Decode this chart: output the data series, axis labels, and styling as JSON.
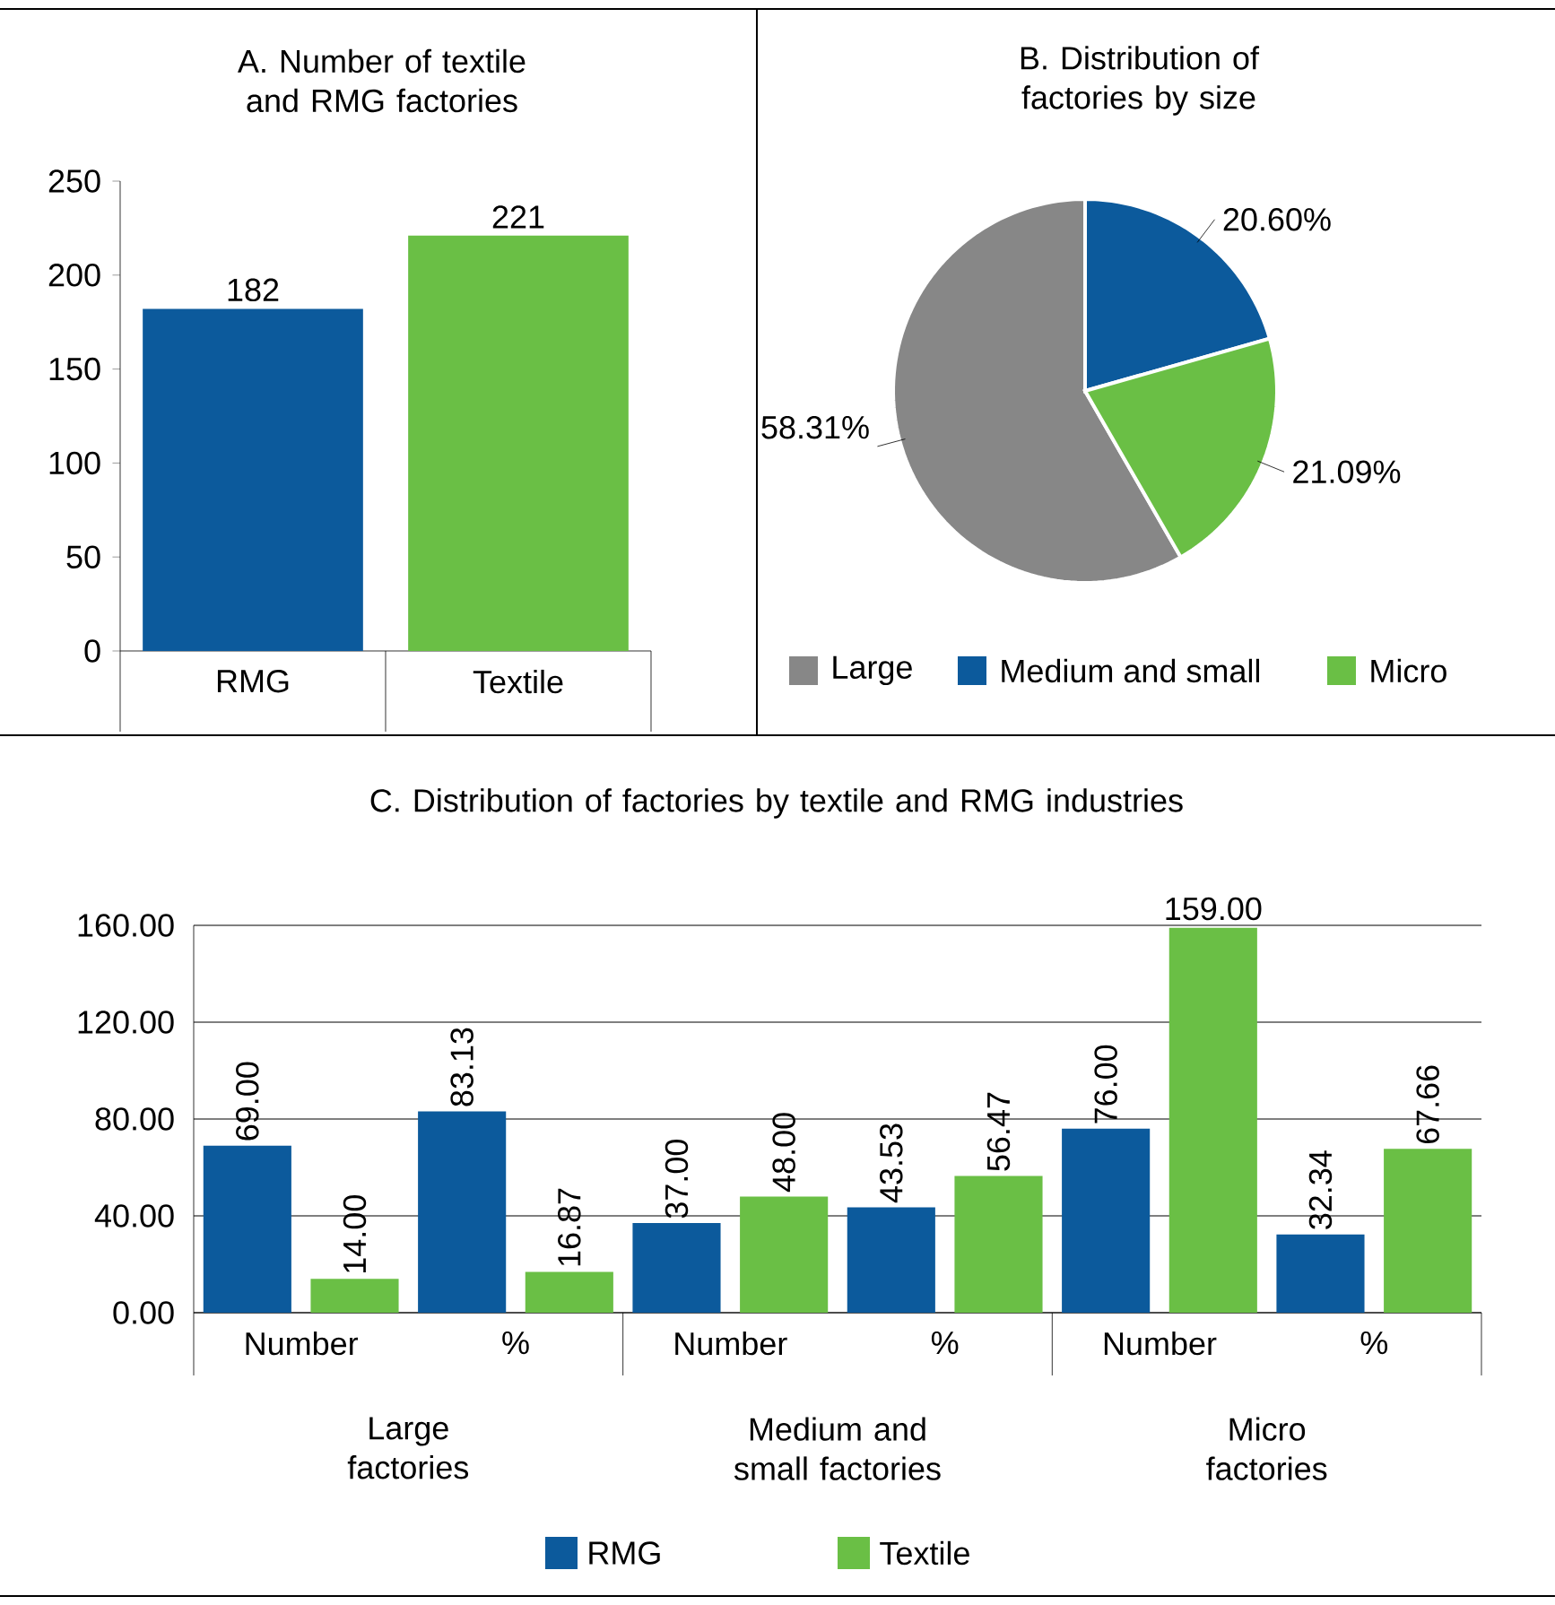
{
  "chart_data": [
    {
      "type": "bar",
      "title": "A. Number of textile and RMG factories",
      "categories": [
        "RMG",
        "Textile"
      ],
      "values": [
        182,
        221
      ],
      "colors": [
        "#0c5a9c",
        "#6abf45"
      ],
      "ylim": [
        0,
        250
      ],
      "yticks": [
        0,
        50,
        100,
        150,
        200,
        250
      ],
      "data_labels": true
    },
    {
      "type": "pie",
      "title": "B. Distribution of factories by size",
      "categories": [
        "Large",
        "Medium and small",
        "Micro"
      ],
      "values": [
        58.31,
        20.6,
        21.09
      ],
      "value_labels": [
        "58.31%",
        "20.60%",
        "21.09%"
      ],
      "colors": [
        "#878787",
        "#0c5a9c",
        "#6abf45"
      ],
      "legend": "bottom"
    },
    {
      "type": "bar",
      "title": "C. Distribution of factories by textile and RMG industries",
      "categories": [
        "Number",
        "%",
        "Number",
        "%",
        "Number",
        "%"
      ],
      "series": [
        {
          "name": "RMG",
          "color": "#0c5a9c",
          "values": [
            69,
            83.13,
            37,
            43.53,
            76,
            32.34
          ],
          "value_labels": [
            "69.00",
            "83.13",
            "37.00",
            "43.53",
            "76.00",
            "32.34"
          ]
        },
        {
          "name": "Textile",
          "color": "#6abf45",
          "values": [
            14,
            16.87,
            48,
            56.47,
            159,
            67.66
          ],
          "value_labels": [
            "14.00",
            "16.87",
            "48.00",
            "56.47",
            "159.00",
            "67.66"
          ]
        }
      ],
      "ylim": [
        0,
        160
      ],
      "yticks": [
        {
          "value": 0,
          "label": "0.00"
        },
        {
          "value": 40,
          "label": "40.00"
        },
        {
          "value": 80,
          "label": "80.00"
        },
        {
          "value": 120,
          "label": "120.00"
        },
        {
          "value": 160,
          "label": "160.00"
        }
      ],
      "grid": "y",
      "legend": "bottom",
      "annotations": [
        "Large factories",
        "Medium and small factories",
        "Micro factories"
      ]
    }
  ]
}
